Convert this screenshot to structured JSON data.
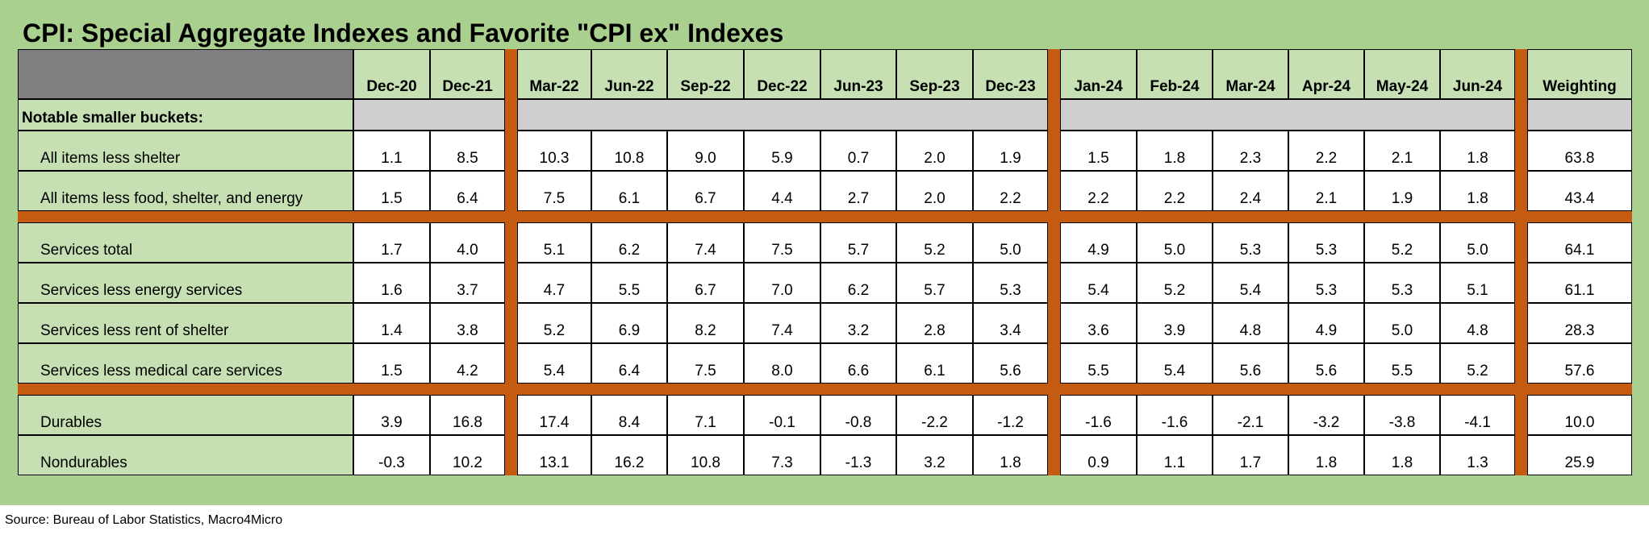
{
  "title": "CPI: Special Aggregate Indexes and Favorite \"CPI ex\" Indexes",
  "source": "Source: Bureau of Labor Statistics, Macro4Micro",
  "colors": {
    "frame": "#a9d08e",
    "label_fill": "#c6e0b4",
    "corner_fill": "#7f7f7f",
    "gray_fill": "#d0cece",
    "separator": "#c55a11"
  },
  "chart_data": {
    "type": "table",
    "columns": [
      "Dec-20",
      "Dec-21",
      "Mar-22",
      "Jun-22",
      "Sep-22",
      "Dec-22",
      "Jun-23",
      "Sep-23",
      "Dec-23",
      "Jan-24",
      "Feb-24",
      "Mar-24",
      "Apr-24",
      "May-24",
      "Jun-24",
      "Weighting"
    ],
    "section_label": "Notable smaller buckets:",
    "groups": [
      {
        "rows": [
          {
            "label": "All items less shelter",
            "values": [
              "1.1",
              "8.5",
              "10.3",
              "10.8",
              "9.0",
              "5.9",
              "0.7",
              "2.0",
              "1.9",
              "1.5",
              "1.8",
              "2.3",
              "2.2",
              "2.1",
              "1.8",
              "63.8"
            ]
          },
          {
            "label": "All items less food, shelter, and energy",
            "values": [
              "1.5",
              "6.4",
              "7.5",
              "6.1",
              "6.7",
              "4.4",
              "2.7",
              "2.0",
              "2.2",
              "2.2",
              "2.2",
              "2.4",
              "2.1",
              "1.9",
              "1.8",
              "43.4"
            ]
          }
        ]
      },
      {
        "rows": [
          {
            "label": "Services total",
            "values": [
              "1.7",
              "4.0",
              "5.1",
              "6.2",
              "7.4",
              "7.5",
              "5.7",
              "5.2",
              "5.0",
              "4.9",
              "5.0",
              "5.3",
              "5.3",
              "5.2",
              "5.0",
              "64.1"
            ]
          },
          {
            "label": "Services less energy services",
            "values": [
              "1.6",
              "3.7",
              "4.7",
              "5.5",
              "6.7",
              "7.0",
              "6.2",
              "5.7",
              "5.3",
              "5.4",
              "5.2",
              "5.4",
              "5.3",
              "5.3",
              "5.1",
              "61.1"
            ]
          },
          {
            "label": "Services less rent of shelter",
            "values": [
              "1.4",
              "3.8",
              "5.2",
              "6.9",
              "8.2",
              "7.4",
              "3.2",
              "2.8",
              "3.4",
              "3.6",
              "3.9",
              "4.8",
              "4.9",
              "5.0",
              "4.8",
              "28.3"
            ]
          },
          {
            "label": "Services less medical care services",
            "values": [
              "1.5",
              "4.2",
              "5.4",
              "6.4",
              "7.5",
              "8.0",
              "6.6",
              "6.1",
              "5.6",
              "5.5",
              "5.4",
              "5.6",
              "5.6",
              "5.5",
              "5.2",
              "57.6"
            ]
          }
        ]
      },
      {
        "rows": [
          {
            "label": "Durables",
            "values": [
              "3.9",
              "16.8",
              "17.4",
              "8.4",
              "7.1",
              "-0.1",
              "-0.8",
              "-2.2",
              "-1.2",
              "-1.6",
              "-1.6",
              "-2.1",
              "-3.2",
              "-3.8",
              "-4.1",
              "10.0"
            ]
          },
          {
            "label": "Nondurables",
            "values": [
              "-0.3",
              "10.2",
              "13.1",
              "16.2",
              "10.8",
              "7.3",
              "-1.3",
              "3.2",
              "1.8",
              "0.9",
              "1.1",
              "1.7",
              "1.8",
              "1.8",
              "1.3",
              "25.9"
            ]
          }
        ]
      }
    ]
  }
}
